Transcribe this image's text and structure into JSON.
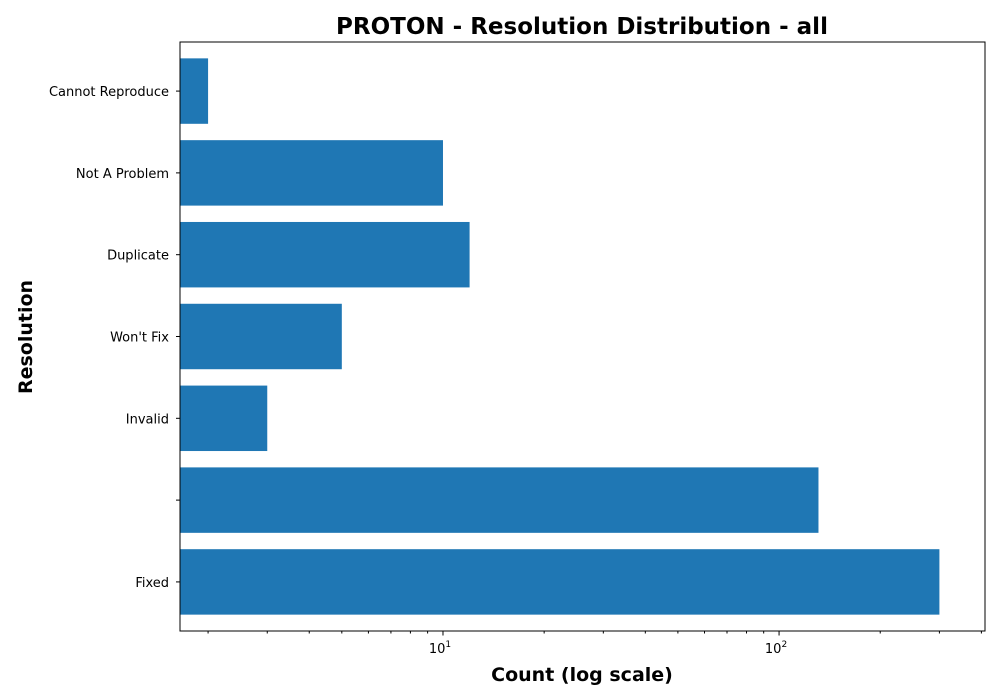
{
  "chart_data": {
    "type": "bar",
    "orientation": "horizontal",
    "title": "PROTON - Resolution Distribution - all",
    "xlabel": "Count (log scale)",
    "ylabel": "Resolution",
    "x_scale": "log",
    "xlim": [
      1.65,
      410
    ],
    "x_major_ticks": [
      {
        "value": 10,
        "base": "10",
        "exp": "1"
      },
      {
        "value": 100,
        "base": "10",
        "exp": "2"
      }
    ],
    "categories": [
      "Fixed",
      "",
      "Invalid",
      "Won't Fix",
      "Duplicate",
      "Not A Problem",
      "Cannot Reproduce"
    ],
    "values": [
      300,
      131,
      3,
      5,
      12,
      10,
      2
    ],
    "bar_color": "#1f77b4",
    "grid": false,
    "legend": "none"
  }
}
